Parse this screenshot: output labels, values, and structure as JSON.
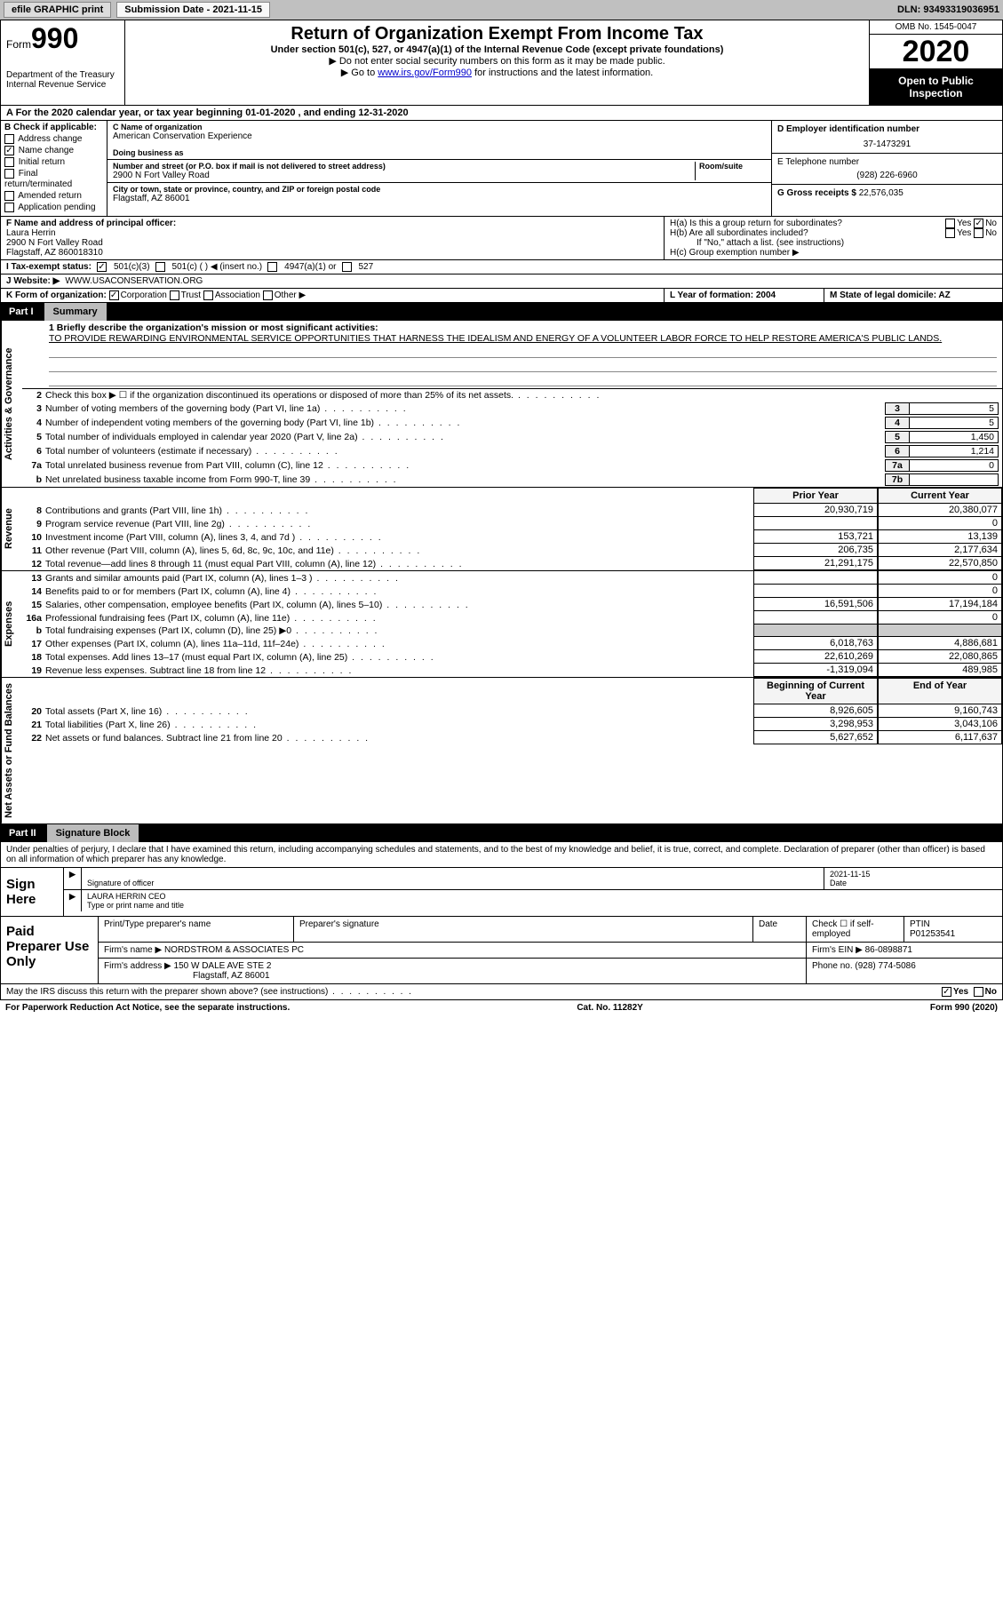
{
  "topbar": {
    "efile": "efile GRAPHIC print",
    "sub_label": "Submission Date - 2021-11-15",
    "dln": "DLN: 93493319036951"
  },
  "header": {
    "form_prefix": "Form",
    "form_num": "990",
    "dept": "Department of the Treasury\nInternal Revenue Service",
    "title": "Return of Organization Exempt From Income Tax",
    "sub": "Under section 501(c), 527, or 4947(a)(1) of the Internal Revenue Code (except private foundations)",
    "note1": "▶ Do not enter social security numbers on this form as it may be made public.",
    "note2_pre": "▶ Go to ",
    "note2_link": "www.irs.gov/Form990",
    "note2_post": " for instructions and the latest information.",
    "omb": "OMB No. 1545-0047",
    "year": "2020",
    "open": "Open to Public Inspection"
  },
  "row_a": "A For the 2020 calendar year, or tax year beginning 01-01-2020   , and ending 12-31-2020",
  "box_b": {
    "label": "B Check if applicable:",
    "items": [
      "Address change",
      "Name change",
      "Initial return",
      "Final return/terminated",
      "Amended return",
      "Application pending"
    ],
    "checked": [
      false,
      true,
      false,
      false,
      false,
      false
    ],
    "pending_note": ""
  },
  "box_c": {
    "name_label": "C Name of organization",
    "name": "American Conservation Experience",
    "dba_label": "Doing business as",
    "addr_label": "Number and street (or P.O. box if mail is not delivered to street address)",
    "room_label": "Room/suite",
    "addr": "2900 N Fort Valley Road",
    "city_label": "City or town, state or province, country, and ZIP or foreign postal code",
    "city": "Flagstaff, AZ  86001"
  },
  "box_d": {
    "label": "D Employer identification number",
    "val": "37-1473291"
  },
  "box_e": {
    "label": "E Telephone number",
    "val": "(928) 226-6960"
  },
  "box_g": {
    "label": "G Gross receipts $",
    "val": "22,576,035"
  },
  "box_f": {
    "label": "F  Name and address of principal officer:",
    "name": "Laura Herrin",
    "addr1": "2900 N Fort Valley Road",
    "addr2": "Flagstaff, AZ  860018310"
  },
  "box_h": {
    "a": "H(a)  Is this a group return for subordinates?",
    "a_yes": "Yes",
    "a_no": "No",
    "b": "H(b)  Are all subordinates included?",
    "b_note": "If \"No,\" attach a list. (see instructions)",
    "c": "H(c)  Group exemption number ▶"
  },
  "row_i": {
    "label": "I   Tax-exempt status:",
    "opts": [
      "501(c)(3)",
      "501(c) (  ) ◀ (insert no.)",
      "4947(a)(1) or",
      "527"
    ]
  },
  "row_j": {
    "label": "J   Website: ▶",
    "val": "WWW.USACONSERVATION.ORG"
  },
  "row_k": {
    "label": "K Form of organization:",
    "opts": [
      "Corporation",
      "Trust",
      "Association",
      "Other ▶"
    ]
  },
  "row_l": "L Year of formation: 2004",
  "row_m": "M State of legal domicile: AZ",
  "part1": {
    "num": "Part I",
    "title": "Summary"
  },
  "mission": {
    "q": "1  Briefly describe the organization's mission or most significant activities:",
    "text": "TO PROVIDE REWARDING ENVIRONMENTAL SERVICE OPPORTUNITIES THAT HARNESS THE IDEALISM AND ENERGY OF A VOLUNTEER LABOR FORCE TO HELP RESTORE AMERICA'S PUBLIC LANDS."
  },
  "gov_lines": [
    {
      "n": "2",
      "t": "Check this box ▶ ☐  if the organization discontinued its operations or disposed of more than 25% of its net assets.",
      "box": "",
      "val": ""
    },
    {
      "n": "3",
      "t": "Number of voting members of the governing body (Part VI, line 1a)",
      "box": "3",
      "val": "5"
    },
    {
      "n": "4",
      "t": "Number of independent voting members of the governing body (Part VI, line 1b)",
      "box": "4",
      "val": "5"
    },
    {
      "n": "5",
      "t": "Total number of individuals employed in calendar year 2020 (Part V, line 2a)",
      "box": "5",
      "val": "1,450"
    },
    {
      "n": "6",
      "t": "Total number of volunteers (estimate if necessary)",
      "box": "6",
      "val": "1,214"
    },
    {
      "n": "7a",
      "t": "Total unrelated business revenue from Part VIII, column (C), line 12",
      "box": "7a",
      "val": "0"
    },
    {
      "n": "b",
      "t": "Net unrelated business taxable income from Form 990-T, line 39",
      "box": "7b",
      "val": ""
    }
  ],
  "col_headers": {
    "prior": "Prior Year",
    "current": "Current Year"
  },
  "rev_lines": [
    {
      "n": "8",
      "t": "Contributions and grants (Part VIII, line 1h)",
      "p": "20,930,719",
      "c": "20,380,077"
    },
    {
      "n": "9",
      "t": "Program service revenue (Part VIII, line 2g)",
      "p": "",
      "c": "0"
    },
    {
      "n": "10",
      "t": "Investment income (Part VIII, column (A), lines 3, 4, and 7d )",
      "p": "153,721",
      "c": "13,139"
    },
    {
      "n": "11",
      "t": "Other revenue (Part VIII, column (A), lines 5, 6d, 8c, 9c, 10c, and 11e)",
      "p": "206,735",
      "c": "2,177,634"
    },
    {
      "n": "12",
      "t": "Total revenue—add lines 8 through 11 (must equal Part VIII, column (A), line 12)",
      "p": "21,291,175",
      "c": "22,570,850"
    }
  ],
  "exp_lines": [
    {
      "n": "13",
      "t": "Grants and similar amounts paid (Part IX, column (A), lines 1–3 )",
      "p": "",
      "c": "0"
    },
    {
      "n": "14",
      "t": "Benefits paid to or for members (Part IX, column (A), line 4)",
      "p": "",
      "c": "0"
    },
    {
      "n": "15",
      "t": "Salaries, other compensation, employee benefits (Part IX, column (A), lines 5–10)",
      "p": "16,591,506",
      "c": "17,194,184"
    },
    {
      "n": "16a",
      "t": "Professional fundraising fees (Part IX, column (A), line 11e)",
      "p": "",
      "c": "0"
    },
    {
      "n": "b",
      "t": "Total fundraising expenses (Part IX, column (D), line 25) ▶0",
      "p": "shade",
      "c": "shade"
    },
    {
      "n": "17",
      "t": "Other expenses (Part IX, column (A), lines 11a–11d, 11f–24e)",
      "p": "6,018,763",
      "c": "4,886,681"
    },
    {
      "n": "18",
      "t": "Total expenses. Add lines 13–17 (must equal Part IX, column (A), line 25)",
      "p": "22,610,269",
      "c": "22,080,865"
    },
    {
      "n": "19",
      "t": "Revenue less expenses. Subtract line 18 from line 12",
      "p": "-1,319,094",
      "c": "489,985"
    }
  ],
  "net_headers": {
    "beg": "Beginning of Current Year",
    "end": "End of Year"
  },
  "net_lines": [
    {
      "n": "20",
      "t": "Total assets (Part X, line 16)",
      "p": "8,926,605",
      "c": "9,160,743"
    },
    {
      "n": "21",
      "t": "Total liabilities (Part X, line 26)",
      "p": "3,298,953",
      "c": "3,043,106"
    },
    {
      "n": "22",
      "t": "Net assets or fund balances. Subtract line 21 from line 20",
      "p": "5,627,652",
      "c": "6,117,637"
    }
  ],
  "part2": {
    "num": "Part II",
    "title": "Signature Block"
  },
  "sig": {
    "intro": "Under penalties of perjury, I declare that I have examined this return, including accompanying schedules and statements, and to the best of my knowledge and belief, it is true, correct, and complete. Declaration of preparer (other than officer) is based on all information of which preparer has any knowledge.",
    "sign_here": "Sign Here",
    "sig_of_officer": "Signature of officer",
    "date_label": "Date",
    "date": "2021-11-15",
    "name_title": "LAURA HERRIN CEO",
    "type_label": "Type or print name and title"
  },
  "prep": {
    "label": "Paid Preparer Use Only",
    "h1": "Print/Type preparer's name",
    "h2": "Preparer's signature",
    "h3": "Date",
    "h4": "Check ☐ if self-employed",
    "h5": "PTIN",
    "ptin": "P01253541",
    "firm_name_l": "Firm's name    ▶",
    "firm_name": "NORDSTROM & ASSOCIATES PC",
    "firm_ein_l": "Firm's EIN ▶",
    "firm_ein": "86-0898871",
    "firm_addr_l": "Firm's address ▶",
    "firm_addr": "150 W DALE AVE STE 2",
    "firm_city": "Flagstaff, AZ  86001",
    "phone_l": "Phone no.",
    "phone": "(928) 774-5086"
  },
  "discuss": "May the IRS discuss this return with the preparer shown above? (see instructions)",
  "footer": {
    "left": "For Paperwork Reduction Act Notice, see the separate instructions.",
    "mid": "Cat. No. 11282Y",
    "right": "Form 990 (2020)"
  },
  "sidebars": {
    "gov": "Activities & Governance",
    "rev": "Revenue",
    "exp": "Expenses",
    "net": "Net Assets or Fund Balances"
  },
  "colors": {
    "topbar_bg": "#c0c0c0",
    "part_title_bg": "#bcbcbc",
    "link": "#0000cc"
  }
}
